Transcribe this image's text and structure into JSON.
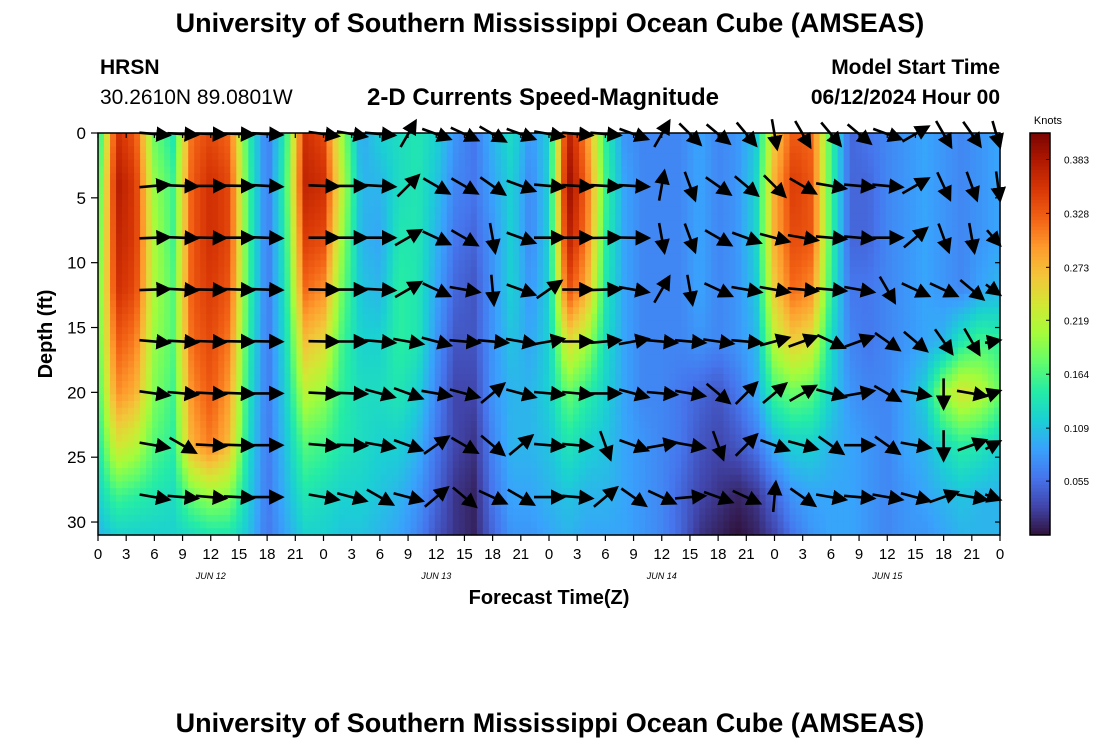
{
  "header": {
    "title": "University of Southern Mississippi Ocean Cube (AMSEAS)",
    "station": "HRSN",
    "coordinates": "30.2610N  89.0801W",
    "plot_title": "2-D Currents Speed-Magnitude",
    "model_start_label": "Model Start Time",
    "model_start_value": "06/12/2024 Hour 00"
  },
  "footer": {
    "title": "University of Southern Mississippi Ocean Cube (AMSEAS)"
  },
  "colors": {
    "scale": [
      "#30123b",
      "#4145ab",
      "#4675ed",
      "#39a2fc",
      "#1bcfd4",
      "#24eca6",
      "#61fc6c",
      "#a4fc3b",
      "#d1e834",
      "#f3c63a",
      "#fe9b2d",
      "#f36315",
      "#d93806",
      "#b11901",
      "#7a0402"
    ],
    "arrow": "#000000",
    "frame": "#000000"
  },
  "chart_data": {
    "type": "heatmap",
    "title": "2-D Currents Speed-Magnitude",
    "xlabel": "Forecast Time(Z)",
    "ylabel": "Depth (ft)",
    "x_hours_range": [
      0,
      96
    ],
    "ylim": [
      31,
      0
    ],
    "x_tick_labels": [
      "0",
      "3",
      "6",
      "9",
      "12",
      "15",
      "18",
      "21",
      "0",
      "3",
      "6",
      "9",
      "12",
      "15",
      "18",
      "21",
      "0",
      "3",
      "6",
      "9",
      "12",
      "15",
      "18",
      "21",
      "0",
      "3",
      "6",
      "9",
      "12",
      "15",
      "18",
      "21",
      "0"
    ],
    "date_labels": [
      {
        "label": "JUN 12",
        "hour": 12
      },
      {
        "label": "JUN 13",
        "hour": 36
      },
      {
        "label": "JUN 14",
        "hour": 60
      },
      {
        "label": "JUN 15",
        "hour": 84
      }
    ],
    "y_ticks": [
      0,
      5,
      10,
      15,
      20,
      25,
      30
    ],
    "colorbar": {
      "unit": "Knots",
      "min": 0.0,
      "max": 0.41,
      "tick_values": [
        0.383,
        0.328,
        0.273,
        0.219,
        0.164,
        0.109,
        0.055
      ],
      "tick_labels": [
        "0.383",
        "0.328",
        "0.273",
        "0.219",
        "0.164",
        "0.109",
        "0.055"
      ]
    },
    "grid_hours": [
      0,
      2,
      4,
      6,
      8,
      10,
      12,
      14,
      16,
      18,
      20,
      22,
      24,
      26,
      28,
      30,
      32,
      34,
      36,
      38,
      40,
      42,
      44,
      46,
      48,
      50,
      52,
      54,
      56,
      58,
      60,
      62,
      64,
      66,
      68,
      70,
      72,
      74,
      76,
      78,
      80,
      82,
      84,
      86,
      88,
      90,
      92,
      94,
      96
    ],
    "grid_depths": [
      0,
      4,
      8,
      12,
      16,
      20,
      24,
      28,
      31
    ],
    "speed_knots": [
      [
        0.13,
        0.36,
        0.33,
        0.18,
        0.14,
        0.32,
        0.34,
        0.32,
        0.15,
        0.06,
        0.15,
        0.36,
        0.34,
        0.2,
        0.09,
        0.12,
        0.13,
        0.14,
        0.12,
        0.08,
        0.06,
        0.1,
        0.13,
        0.08,
        0.12,
        0.38,
        0.3,
        0.15,
        0.08,
        0.07,
        0.07,
        0.07,
        0.09,
        0.07,
        0.08,
        0.11,
        0.26,
        0.33,
        0.32,
        0.16,
        0.05,
        0.06,
        0.07,
        0.08,
        0.09,
        0.08,
        0.07,
        0.08,
        0.09
      ],
      [
        0.15,
        0.38,
        0.35,
        0.2,
        0.16,
        0.33,
        0.36,
        0.34,
        0.16,
        0.06,
        0.16,
        0.37,
        0.36,
        0.22,
        0.1,
        0.1,
        0.13,
        0.14,
        0.11,
        0.07,
        0.06,
        0.09,
        0.12,
        0.07,
        0.12,
        0.4,
        0.32,
        0.16,
        0.09,
        0.07,
        0.07,
        0.07,
        0.09,
        0.07,
        0.08,
        0.12,
        0.28,
        0.35,
        0.33,
        0.16,
        0.05,
        0.05,
        0.07,
        0.08,
        0.09,
        0.08,
        0.07,
        0.08,
        0.09
      ],
      [
        0.16,
        0.37,
        0.35,
        0.21,
        0.16,
        0.33,
        0.36,
        0.34,
        0.16,
        0.06,
        0.15,
        0.35,
        0.34,
        0.2,
        0.1,
        0.09,
        0.14,
        0.14,
        0.1,
        0.06,
        0.05,
        0.08,
        0.12,
        0.07,
        0.12,
        0.38,
        0.31,
        0.15,
        0.09,
        0.07,
        0.07,
        0.07,
        0.09,
        0.07,
        0.08,
        0.12,
        0.28,
        0.34,
        0.33,
        0.16,
        0.05,
        0.05,
        0.07,
        0.08,
        0.09,
        0.08,
        0.07,
        0.08,
        0.09
      ],
      [
        0.17,
        0.36,
        0.34,
        0.21,
        0.17,
        0.33,
        0.35,
        0.33,
        0.16,
        0.06,
        0.14,
        0.32,
        0.3,
        0.18,
        0.11,
        0.1,
        0.15,
        0.14,
        0.09,
        0.05,
        0.04,
        0.08,
        0.12,
        0.08,
        0.12,
        0.34,
        0.28,
        0.14,
        0.09,
        0.07,
        0.07,
        0.07,
        0.09,
        0.07,
        0.08,
        0.11,
        0.26,
        0.32,
        0.3,
        0.15,
        0.06,
        0.06,
        0.07,
        0.08,
        0.09,
        0.08,
        0.07,
        0.09,
        0.1
      ],
      [
        0.17,
        0.33,
        0.31,
        0.2,
        0.17,
        0.32,
        0.34,
        0.31,
        0.15,
        0.06,
        0.13,
        0.27,
        0.25,
        0.16,
        0.12,
        0.12,
        0.15,
        0.14,
        0.08,
        0.04,
        0.04,
        0.08,
        0.11,
        0.09,
        0.12,
        0.25,
        0.21,
        0.13,
        0.09,
        0.07,
        0.07,
        0.07,
        0.08,
        0.07,
        0.08,
        0.1,
        0.22,
        0.26,
        0.24,
        0.13,
        0.07,
        0.06,
        0.07,
        0.08,
        0.09,
        0.1,
        0.14,
        0.16,
        0.15
      ],
      [
        0.16,
        0.3,
        0.28,
        0.19,
        0.16,
        0.3,
        0.33,
        0.29,
        0.14,
        0.06,
        0.12,
        0.22,
        0.2,
        0.15,
        0.13,
        0.13,
        0.14,
        0.12,
        0.07,
        0.03,
        0.03,
        0.08,
        0.1,
        0.1,
        0.12,
        0.18,
        0.15,
        0.12,
        0.09,
        0.07,
        0.07,
        0.06,
        0.05,
        0.04,
        0.06,
        0.09,
        0.16,
        0.18,
        0.17,
        0.12,
        0.08,
        0.07,
        0.07,
        0.09,
        0.12,
        0.2,
        0.24,
        0.22,
        0.18
      ],
      [
        0.14,
        0.24,
        0.22,
        0.17,
        0.15,
        0.28,
        0.31,
        0.27,
        0.13,
        0.06,
        0.11,
        0.17,
        0.16,
        0.14,
        0.13,
        0.12,
        0.12,
        0.1,
        0.06,
        0.03,
        0.02,
        0.07,
        0.1,
        0.1,
        0.11,
        0.14,
        0.12,
        0.11,
        0.09,
        0.08,
        0.07,
        0.06,
        0.04,
        0.03,
        0.04,
        0.06,
        0.1,
        0.12,
        0.12,
        0.1,
        0.09,
        0.08,
        0.07,
        0.09,
        0.1,
        0.13,
        0.15,
        0.14,
        0.12
      ],
      [
        0.12,
        0.16,
        0.15,
        0.14,
        0.13,
        0.18,
        0.2,
        0.19,
        0.12,
        0.06,
        0.1,
        0.14,
        0.13,
        0.12,
        0.12,
        0.11,
        0.1,
        0.08,
        0.05,
        0.02,
        0.01,
        0.06,
        0.09,
        0.09,
        0.1,
        0.11,
        0.1,
        0.1,
        0.09,
        0.08,
        0.07,
        0.05,
        0.03,
        0.02,
        0.01,
        0.02,
        0.05,
        0.08,
        0.09,
        0.09,
        0.09,
        0.08,
        0.07,
        0.08,
        0.09,
        0.1,
        0.11,
        0.1,
        0.1
      ],
      [
        0.1,
        0.12,
        0.12,
        0.12,
        0.12,
        0.13,
        0.14,
        0.14,
        0.11,
        0.06,
        0.09,
        0.12,
        0.12,
        0.11,
        0.11,
        0.1,
        0.09,
        0.07,
        0.04,
        0.02,
        0.01,
        0.05,
        0.08,
        0.08,
        0.09,
        0.1,
        0.09,
        0.09,
        0.09,
        0.08,
        0.07,
        0.05,
        0.02,
        0.01,
        0.0,
        0.01,
        0.03,
        0.06,
        0.08,
        0.09,
        0.09,
        0.08,
        0.07,
        0.08,
        0.08,
        0.09,
        0.1,
        0.1,
        0.1
      ]
    ],
    "vectors": {
      "depths": [
        0,
        4,
        8,
        12,
        16,
        20,
        24,
        28
      ],
      "hours": [
        6,
        9,
        12,
        15,
        18,
        24,
        27,
        30,
        33,
        36,
        39,
        42,
        45,
        48,
        51,
        54,
        57,
        60,
        63,
        66,
        69,
        72,
        75,
        78,
        81,
        84,
        87,
        90,
        93,
        96
      ],
      "angles_deg": [
        [
          -5,
          -3,
          -2,
          -2,
          -3,
          -8,
          -10,
          -5,
          60,
          -20,
          -25,
          -30,
          -20,
          -10,
          -5,
          -5,
          -20,
          60,
          -45,
          -40,
          -50,
          -80,
          -60,
          -50,
          -40,
          -20,
          30,
          -60,
          -55,
          -60
        ],
        [
          5,
          -2,
          0,
          -1,
          -3,
          -2,
          0,
          -3,
          45,
          -30,
          -30,
          -35,
          -20,
          -5,
          -3,
          -3,
          -3,
          80,
          -70,
          -35,
          -40,
          -45,
          -30,
          -10,
          -5,
          -5,
          30,
          -65,
          -70,
          -75
        ],
        [
          2,
          -2,
          -1,
          0,
          -2,
          0,
          0,
          0,
          30,
          -25,
          -30,
          -80,
          -20,
          0,
          0,
          1,
          -1,
          -80,
          -70,
          -30,
          -20,
          -15,
          -10,
          -5,
          -5,
          0,
          40,
          -70,
          -80,
          -30
        ],
        [
          2,
          -3,
          -1,
          -2,
          -2,
          -1,
          0,
          -3,
          30,
          -25,
          -10,
          -85,
          -20,
          35,
          0,
          2,
          -10,
          60,
          -80,
          -25,
          -10,
          -10,
          -5,
          -5,
          -10,
          -60,
          -25,
          -25,
          -40,
          -20
        ],
        [
          -5,
          -3,
          -2,
          -1,
          -1,
          -1,
          0,
          -5,
          -10,
          -15,
          -5,
          -5,
          -10,
          10,
          0,
          5,
          10,
          -5,
          -5,
          -8,
          -5,
          15,
          20,
          -25,
          20,
          -35,
          -40,
          -55,
          -60,
          5
        ],
        [
          -8,
          -5,
          -3,
          -2,
          0,
          -3,
          -2,
          -15,
          -20,
          -10,
          -15,
          40,
          -15,
          -5,
          -5,
          0,
          -15,
          -5,
          -10,
          -40,
          45,
          40,
          30,
          -15,
          10,
          -30,
          -10,
          -90,
          -10,
          10
        ],
        [
          -10,
          -30,
          -3,
          -2,
          0,
          -5,
          -2,
          -10,
          -20,
          35,
          -30,
          -40,
          40,
          -5,
          -5,
          -70,
          -20,
          10,
          -10,
          -70,
          45,
          -20,
          -15,
          -35,
          0,
          -35,
          -10,
          -90,
          20,
          15
        ],
        [
          -10,
          -5,
          -5,
          -3,
          0,
          -10,
          -15,
          -30,
          -15,
          40,
          -40,
          -25,
          -30,
          0,
          -5,
          40,
          -35,
          -25,
          5,
          -20,
          -25,
          85,
          -35,
          -10,
          -5,
          -10,
          -15,
          20,
          -10,
          -10
        ]
      ]
    }
  }
}
